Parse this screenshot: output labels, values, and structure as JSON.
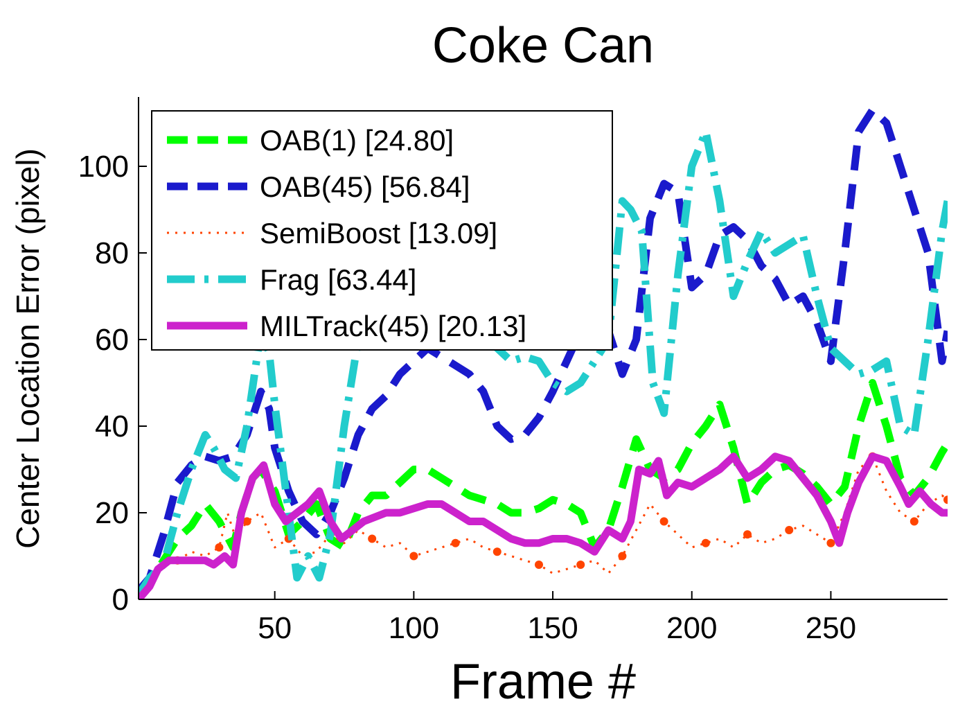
{
  "chart_data": {
    "type": "line",
    "title": "Coke Can",
    "xlabel": "Frame #",
    "ylabel": "Center Location Error (pixel)",
    "xlim": [
      1,
      292
    ],
    "ylim": [
      0,
      116
    ],
    "xticks": [
      50,
      100,
      150,
      200,
      250
    ],
    "yticks": [
      0,
      20,
      40,
      60,
      80,
      100
    ],
    "grid": false,
    "legend_position": "top-left",
    "series": [
      {
        "name": "OAB(1) [24.80]",
        "color": "#00ff00",
        "style": "dashed",
        "x": [
          1,
          5,
          10,
          15,
          20,
          25,
          30,
          35,
          38,
          42,
          45,
          50,
          55,
          60,
          65,
          70,
          75,
          80,
          85,
          90,
          95,
          100,
          105,
          110,
          115,
          120,
          125,
          130,
          135,
          140,
          145,
          150,
          155,
          160,
          165,
          170,
          175,
          180,
          185,
          190,
          195,
          200,
          205,
          210,
          215,
          220,
          225,
          230,
          235,
          240,
          245,
          250,
          255,
          260,
          265,
          270,
          275,
          280,
          285,
          290,
          292
        ],
        "y": [
          1,
          4,
          9,
          14,
          17,
          22,
          18,
          12,
          20,
          28,
          30,
          25,
          15,
          18,
          22,
          14,
          12,
          20,
          24,
          24,
          27,
          30,
          30,
          28,
          26,
          24,
          23,
          22,
          20,
          20,
          21,
          23,
          22,
          20,
          12,
          16,
          26,
          37,
          30,
          28,
          30,
          36,
          40,
          45,
          35,
          22,
          27,
          30,
          31,
          29,
          26,
          22,
          26,
          40,
          50,
          40,
          28,
          24,
          28,
          34,
          36
        ]
      },
      {
        "name": "OAB(45) [56.84]",
        "color": "#1a1acc",
        "style": "dashed",
        "x": [
          1,
          5,
          10,
          15,
          20,
          25,
          30,
          35,
          40,
          45,
          48,
          50,
          55,
          60,
          65,
          70,
          75,
          80,
          85,
          90,
          95,
          100,
          105,
          110,
          115,
          120,
          125,
          130,
          135,
          140,
          145,
          150,
          155,
          160,
          165,
          170,
          175,
          180,
          185,
          190,
          195,
          200,
          205,
          210,
          215,
          220,
          225,
          230,
          235,
          240,
          245,
          250,
          255,
          260,
          265,
          270,
          275,
          280,
          285,
          290,
          292
        ],
        "y": [
          2,
          5,
          15,
          27,
          31,
          33,
          32,
          33,
          38,
          48,
          44,
          35,
          25,
          18,
          15,
          20,
          28,
          38,
          44,
          47,
          52,
          55,
          58,
          56,
          54,
          52,
          48,
          40,
          37,
          38,
          42,
          48,
          55,
          62,
          66,
          62,
          52,
          60,
          88,
          96,
          94,
          72,
          75,
          84,
          86,
          83,
          77,
          74,
          68,
          70,
          64,
          55,
          80,
          108,
          113,
          110,
          100,
          90,
          80,
          55,
          62
        ]
      },
      {
        "name": "SemiBoost [13.09]",
        "color": "#ff4400",
        "style": "dotted",
        "x": [
          1,
          5,
          10,
          15,
          20,
          25,
          30,
          33,
          36,
          40,
          45,
          50,
          55,
          60,
          65,
          70,
          75,
          80,
          85,
          90,
          95,
          100,
          105,
          110,
          115,
          120,
          125,
          130,
          135,
          140,
          145,
          150,
          155,
          160,
          165,
          170,
          175,
          180,
          185,
          190,
          195,
          200,
          205,
          210,
          215,
          220,
          225,
          230,
          235,
          240,
          245,
          250,
          255,
          260,
          265,
          270,
          275,
          280,
          285,
          290,
          292
        ],
        "y": [
          0,
          3,
          8,
          9,
          11,
          10,
          12,
          20,
          14,
          18,
          20,
          12,
          14,
          10,
          11,
          15,
          13,
          16,
          14,
          12,
          13,
          10,
          11,
          12,
          13,
          14,
          12,
          11,
          10,
          9,
          8,
          6,
          7,
          8,
          9,
          6,
          10,
          16,
          22,
          18,
          15,
          12,
          13,
          14,
          12,
          15,
          13,
          14,
          16,
          17,
          15,
          13,
          20,
          30,
          33,
          25,
          20,
          18,
          22,
          24,
          23
        ]
      },
      {
        "name": "Frag [63.44]",
        "color": "#22cccc",
        "style": "dashdot",
        "x": [
          1,
          5,
          10,
          15,
          20,
          25,
          28,
          32,
          36,
          40,
          45,
          48,
          50,
          55,
          58,
          62,
          66,
          70,
          75,
          80,
          85,
          90,
          95,
          100,
          105,
          110,
          115,
          120,
          125,
          130,
          135,
          140,
          145,
          150,
          155,
          160,
          165,
          170,
          175,
          178,
          182,
          186,
          190,
          195,
          200,
          205,
          210,
          215,
          220,
          225,
          230,
          235,
          240,
          245,
          250,
          255,
          260,
          265,
          270,
          275,
          280,
          285,
          290,
          292
        ],
        "y": [
          1,
          5,
          8,
          20,
          30,
          38,
          35,
          30,
          28,
          40,
          62,
          57,
          45,
          20,
          5,
          10,
          5,
          15,
          40,
          60,
          70,
          80,
          85,
          80,
          78,
          75,
          72,
          65,
          60,
          58,
          55,
          56,
          55,
          50,
          48,
          50,
          55,
          60,
          92,
          90,
          85,
          50,
          43,
          75,
          100,
          108,
          92,
          70,
          78,
          85,
          80,
          82,
          84,
          70,
          58,
          55,
          52,
          53,
          55,
          40,
          38,
          60,
          85,
          92
        ]
      },
      {
        "name": "MILTrack(45) [20.13]",
        "color": "#cc22cc",
        "style": "solid",
        "x": [
          1,
          5,
          8,
          12,
          16,
          20,
          25,
          28,
          32,
          35,
          38,
          42,
          46,
          50,
          54,
          58,
          62,
          66,
          70,
          74,
          78,
          82,
          86,
          90,
          95,
          100,
          105,
          110,
          115,
          120,
          125,
          130,
          135,
          140,
          145,
          150,
          155,
          160,
          165,
          170,
          175,
          178,
          181,
          185,
          188,
          191,
          195,
          200,
          205,
          210,
          215,
          220,
          225,
          230,
          235,
          240,
          245,
          250,
          253,
          256,
          260,
          265,
          270,
          275,
          278,
          282,
          286,
          290,
          292
        ],
        "y": [
          0,
          3,
          7,
          9,
          9,
          9,
          9,
          8,
          10,
          8,
          20,
          28,
          31,
          22,
          18,
          20,
          22,
          25,
          18,
          14,
          16,
          18,
          19,
          20,
          20,
          21,
          22,
          22,
          20,
          18,
          18,
          16,
          14,
          13,
          13,
          14,
          14,
          13,
          11,
          16,
          14,
          18,
          30,
          29,
          32,
          24,
          27,
          26,
          28,
          30,
          33,
          28,
          30,
          33,
          32,
          28,
          24,
          18,
          13,
          20,
          27,
          33,
          32,
          26,
          22,
          25,
          22,
          20,
          20
        ]
      }
    ]
  }
}
